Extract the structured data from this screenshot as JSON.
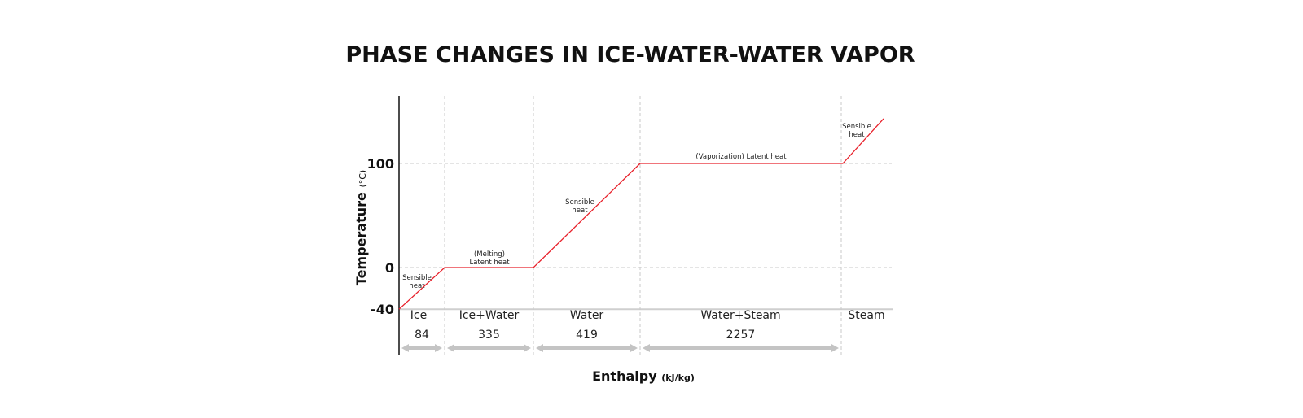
{
  "chart_data": {
    "type": "line",
    "title": "PHASE CHANGES IN ICE-WATER-WATER VAPOR",
    "ylabel": "Temperature",
    "ylabel_unit": "(°C)",
    "xlabel": "Enthalpy",
    "xlabel_unit": "(kJ/kg)",
    "y_ticks": [
      "100",
      "0",
      "-40"
    ],
    "y_tick_values": [
      100,
      0,
      -40
    ],
    "grid": "dashed",
    "line_color": "#e8202a",
    "phases": [
      {
        "label": "Ice",
        "enthalpy": "84",
        "t_start": -40,
        "t_end": 0,
        "annotation": [
          "Sensible",
          "heat"
        ]
      },
      {
        "label": "Ice+Water",
        "enthalpy": "335",
        "t_start": 0,
        "t_end": 0,
        "annotation": [
          "(Melting)",
          "Latent heat"
        ]
      },
      {
        "label": "Water",
        "enthalpy": "419",
        "t_start": 0,
        "t_end": 100,
        "annotation": [
          "Sensible",
          "heat"
        ]
      },
      {
        "label": "Water+Steam",
        "enthalpy": "2257",
        "t_start": 100,
        "t_end": 100,
        "annotation": [
          "(Vaporization) Latent heat"
        ]
      },
      {
        "label": "Steam",
        "enthalpy": "",
        "t_start": 100,
        "t_end": 143,
        "annotation": [
          "Sensible",
          "heat"
        ]
      }
    ]
  }
}
